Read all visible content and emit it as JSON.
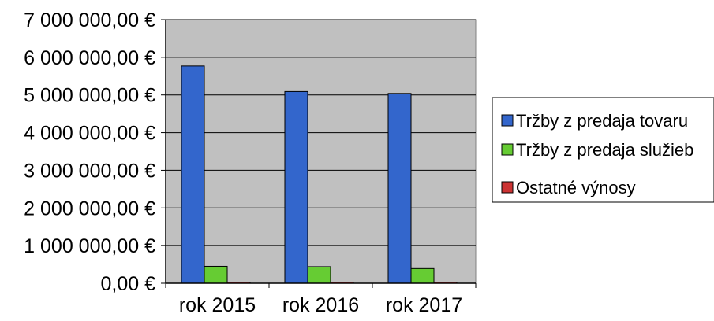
{
  "chart_data": {
    "type": "bar",
    "title": "",
    "xlabel": "",
    "ylabel": "",
    "categories": [
      "rok 2015",
      "rok 2016",
      "rok 2017"
    ],
    "ylim": [
      0,
      7000000
    ],
    "yticks": [
      0,
      1000000,
      2000000,
      3000000,
      4000000,
      5000000,
      6000000,
      7000000
    ],
    "ytick_labels": [
      "0,00 €",
      "1 000 000,00 €",
      "2 000 000,00 €",
      "3 000 000,00 €",
      "4 000 000,00 €",
      "5 000 000,00 €",
      "6 000 000,00 €",
      "7 000 000,00 €"
    ],
    "grid": true,
    "legend_position": "right",
    "plot_background": "#c0c0c0",
    "series": [
      {
        "name": "Tržby z predaja tovaru",
        "color": "#3366cc",
        "values": [
          5770000,
          5090000,
          5040000
        ]
      },
      {
        "name": "Tržby z predaja služieb",
        "color": "#66cc33",
        "values": [
          450000,
          440000,
          390000
        ]
      },
      {
        "name": "Ostatné výnosy",
        "color": "#cc3333",
        "values": [
          30000,
          25000,
          20000
        ]
      }
    ]
  }
}
